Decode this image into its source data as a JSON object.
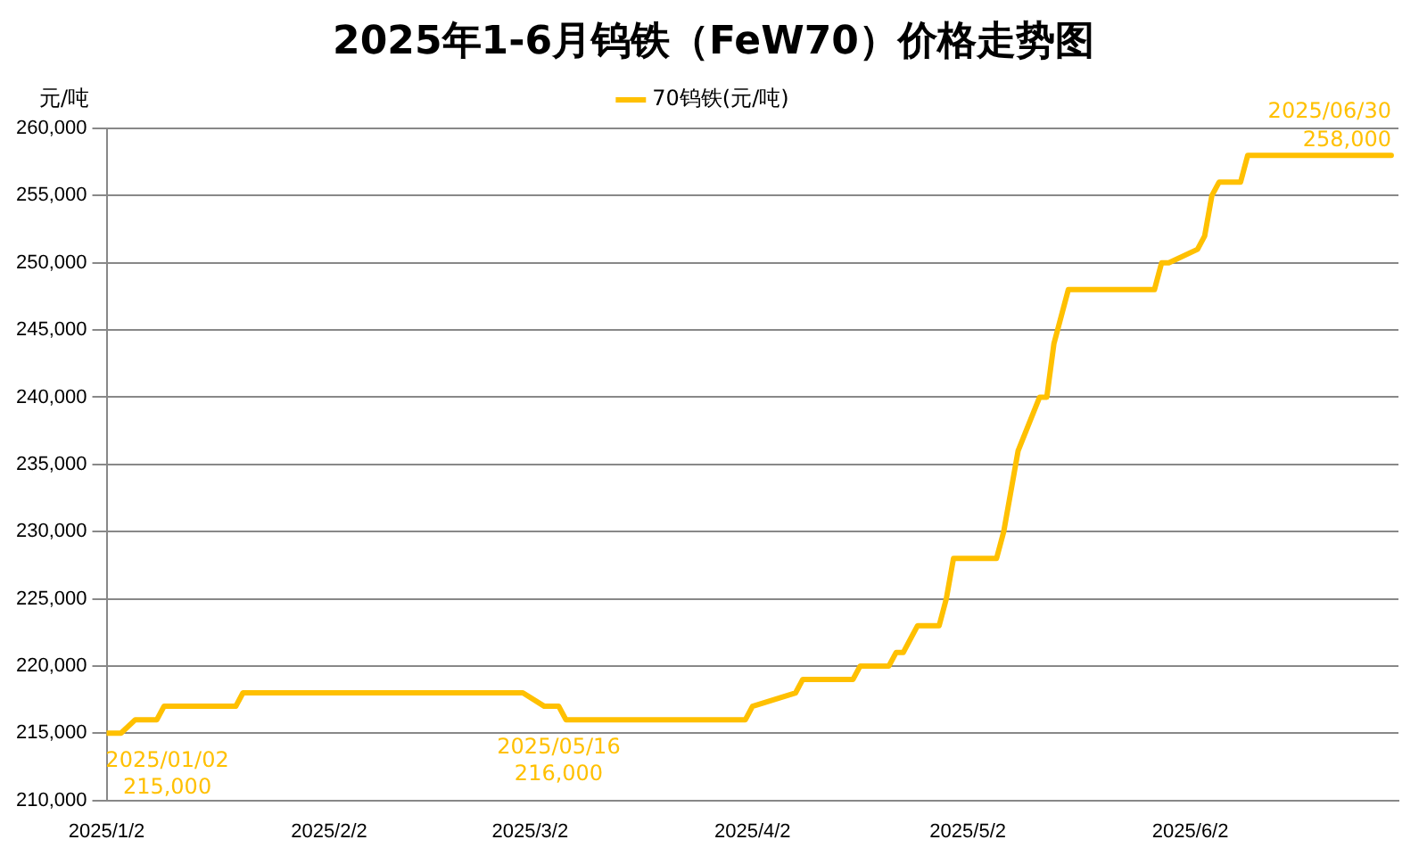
{
  "chart_data": {
    "type": "line",
    "title": "2025年1-6月钨铁（FeW70）价格走势图",
    "ylabel": "元/吨",
    "legend": "top",
    "grid": "y",
    "marker": "none",
    "line_style": "solid",
    "x": [
      "2025-01-02",
      "2025-01-04",
      "2025-01-06",
      "2025-01-09",
      "2025-01-10",
      "2025-01-20",
      "2025-01-21",
      "2025-03-01",
      "2025-03-04",
      "2025-03-06",
      "2025-03-07",
      "2025-04-01",
      "2025-04-02",
      "2025-04-08",
      "2025-04-09",
      "2025-04-16",
      "2025-04-17",
      "2025-04-21",
      "2025-04-22",
      "2025-04-23",
      "2025-04-25",
      "2025-04-28",
      "2025-04-29",
      "2025-04-30",
      "2025-05-06",
      "2025-05-07",
      "2025-05-09",
      "2025-05-12",
      "2025-05-13",
      "2025-05-14",
      "2025-05-16",
      "2025-05-28",
      "2025-05-29",
      "2025-05-30",
      "2025-06-03",
      "2025-06-04",
      "2025-06-05",
      "2025-06-06",
      "2025-06-09",
      "2025-06-10",
      "2025-06-30"
    ],
    "series": [
      {
        "name": "70钨铁(元/吨)",
        "color": "#ffc000",
        "values": [
          215000,
          215000,
          216000,
          216000,
          217000,
          217000,
          218000,
          218000,
          217000,
          217000,
          216000,
          216000,
          217000,
          218000,
          219000,
          219000,
          220000,
          220000,
          221000,
          221000,
          223000,
          223000,
          225000,
          228000,
          228000,
          230000,
          236000,
          240000,
          240000,
          244000,
          248000,
          248000,
          250000,
          250000,
          251000,
          252000,
          255000,
          256000,
          256000,
          258000,
          258000
        ]
      }
    ],
    "xlim": [
      "2025-01-02",
      "2025-07-01"
    ],
    "xticks": [
      {
        "value": "2025-01-02",
        "label": "2025/1/2"
      },
      {
        "value": "2025-02-02",
        "label": "2025/2/2"
      },
      {
        "value": "2025-03-02",
        "label": "2025/3/2"
      },
      {
        "value": "2025-04-02",
        "label": "2025/4/2"
      },
      {
        "value": "2025-05-02",
        "label": "2025/5/2"
      },
      {
        "value": "2025-06-02",
        "label": "2025/6/2"
      }
    ],
    "ylim": [
      210000,
      260000
    ],
    "yticks": [
      {
        "value": 210000,
        "label": "210,000"
      },
      {
        "value": 215000,
        "label": "215,000"
      },
      {
        "value": 220000,
        "label": "220,000"
      },
      {
        "value": 225000,
        "label": "225,000"
      },
      {
        "value": 230000,
        "label": "230,000"
      },
      {
        "value": 235000,
        "label": "235,000"
      },
      {
        "value": 240000,
        "label": "240,000"
      },
      {
        "value": 245000,
        "label": "245,000"
      },
      {
        "value": 250000,
        "label": "250,000"
      },
      {
        "value": 255000,
        "label": "255,000"
      },
      {
        "value": 260000,
        "label": "260,000"
      }
    ],
    "annotations": [
      {
        "text": "2025/01/02\n215,000",
        "x": "2025-01-02",
        "y": 215000
      },
      {
        "text": "2025/05/16\n216,000",
        "x": "2025-03-06",
        "y": 216000
      },
      {
        "text": "2025/06/30\n258,000",
        "x": "2025-06-30",
        "y": 258000
      }
    ]
  }
}
